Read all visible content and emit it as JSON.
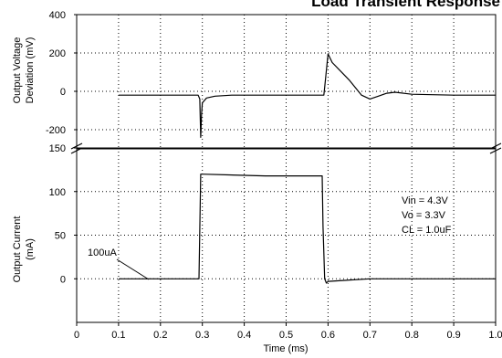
{
  "chart_data": {
    "type": "line",
    "title": "Load Transient Response",
    "xlabel": "Time (ms)",
    "xlim": [
      0,
      1.0
    ],
    "x_ticks": [
      "0",
      "0.1",
      "0.2",
      "0.3",
      "0.4",
      "0.5",
      "0.6",
      "0.7",
      "0.8",
      "0.9",
      "1.0"
    ],
    "grid": true,
    "panels": [
      {
        "ylabel_lines": [
          "Output Voltage",
          "Deviation (mV)"
        ],
        "ylim": [
          -300,
          400
        ],
        "y_ticks": [
          "400",
          "200",
          "0",
          "-200"
        ],
        "series": [
          {
            "x": [
              0.1,
              0.2,
              0.29,
              0.294,
              0.296,
              0.298,
              0.3,
              0.31,
              0.33,
              0.37,
              0.45,
              0.55,
              0.59,
              0.592,
              0.6,
              0.61,
              0.65,
              0.68,
              0.7,
              0.72,
              0.74,
              0.76,
              0.8,
              0.9,
              1.0
            ],
            "y": [
              -20,
              -20,
              -20,
              -40,
              -240,
              -120,
              -60,
              -35,
              -25,
              -20,
              -20,
              -20,
              -20,
              20,
              195,
              150,
              60,
              -20,
              -40,
              -25,
              -10,
              -5,
              -15,
              -20,
              -20
            ]
          }
        ]
      },
      {
        "ylabel_lines": [
          "Output Current",
          "(mA)"
        ],
        "ylim": [
          -50,
          150
        ],
        "y_ticks": [
          "150",
          "100",
          "50",
          "0"
        ],
        "series": [
          {
            "x": [
              0.1,
              0.15,
              0.18,
              0.288,
              0.292,
              0.296,
              0.3,
              0.45,
              0.58,
              0.586,
              0.588,
              0.592,
              0.596,
              0.6,
              0.7,
              0.8,
              0.9,
              1.0
            ],
            "y": [
              0,
              0,
              0,
              0,
              0,
              120,
              120,
              118,
              118,
              118,
              60,
              0,
              -5,
              -3,
              0,
              0,
              0,
              0
            ]
          }
        ]
      }
    ],
    "annotations": [
      {
        "text": "100uA"
      },
      {
        "text": "Vin = 4.3V"
      },
      {
        "text": "Vo = 3.3V"
      },
      {
        "text": "CL = 1.0uF"
      }
    ]
  }
}
